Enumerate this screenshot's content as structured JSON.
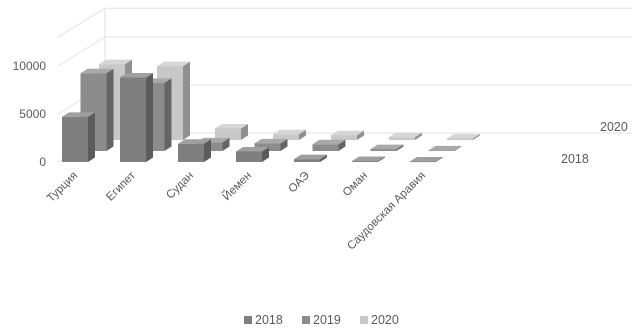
{
  "chart_data": {
    "type": "bar",
    "subtype": "3d-column",
    "title": "",
    "xlabel": "",
    "ylabel": "",
    "categories": [
      "Турция",
      "Египет",
      "Судан",
      "Йемен",
      "ОАЭ",
      "Оман",
      "Саудовская Аравия"
    ],
    "series": [
      {
        "name": "2018",
        "color": "#7f7f7f",
        "values": [
          4700,
          8800,
          1900,
          1100,
          300,
          100,
          50
        ]
      },
      {
        "name": "2019",
        "color": "#8c8c8c",
        "values": [
          8100,
          7100,
          900,
          800,
          700,
          200,
          60
        ]
      },
      {
        "name": "2020",
        "color": "#c8c8c8",
        "values": [
          7900,
          7700,
          1200,
          600,
          500,
          300,
          150
        ]
      }
    ],
    "yticks": [
      "0",
      "5000",
      "10000"
    ],
    "ylim": [
      0,
      13000
    ],
    "depth_labels": [
      "2018",
      "2020"
    ],
    "legend_position": "bottom",
    "grid": true
  }
}
